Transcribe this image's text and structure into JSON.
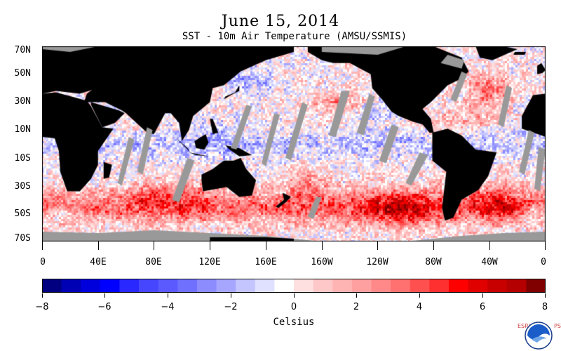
{
  "title": "June 15, 2014",
  "subtitle": "SST - 10m Air Temperature (AMSU/SSMIS)",
  "map": {
    "latitude_labels": [
      "70N",
      "50N",
      "30N",
      "10N",
      "10S",
      "30S",
      "50S",
      "70S"
    ],
    "longitude_labels": [
      "0",
      "40E",
      "80E",
      "120E",
      "160E",
      "160W",
      "120W",
      "80W",
      "40W",
      "0"
    ],
    "land_color": "#000000",
    "missing_data_color": "#999999"
  },
  "colorbar": {
    "tick_labels": [
      "−8",
      "−6",
      "−4",
      "−2",
      "0",
      "2",
      "4",
      "6",
      "8"
    ],
    "unit_label": "Celsius",
    "range": [
      -8,
      8
    ],
    "colors": [
      "#000080",
      "#0000b4",
      "#0000dc",
      "#0000ff",
      "#2828ff",
      "#4646ff",
      "#5a5aff",
      "#7070ff",
      "#8c8cff",
      "#a6a6ff",
      "#c4c4ff",
      "#e0e0ff",
      "#ffffff",
      "#ffe0e0",
      "#ffc8c8",
      "#ffb4b4",
      "#ffa0a0",
      "#ff8888",
      "#ff7070",
      "#ff5050",
      "#ff3030",
      "#ff0000",
      "#e00000",
      "#c80000",
      "#b40000",
      "#800000"
    ]
  },
  "logo": {
    "left_text": "ESRL",
    "right_text": "PSD",
    "emblem": "noaa-logo-icon"
  }
}
